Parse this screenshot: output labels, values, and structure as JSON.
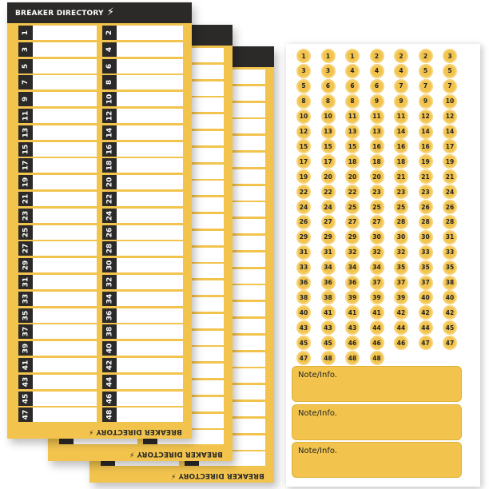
{
  "directory": {
    "title": "BREAKER DIRECTORY",
    "bolt_icon": "lightning-bolt-icon",
    "left_numbers": [
      "1",
      "3",
      "5",
      "7",
      "9",
      "11",
      "13",
      "15",
      "17",
      "19",
      "21",
      "23",
      "25",
      "27",
      "29",
      "31",
      "33",
      "35",
      "37",
      "39",
      "41",
      "43",
      "45",
      "47"
    ],
    "right_numbers": [
      "2",
      "4",
      "6",
      "8",
      "10",
      "12",
      "14",
      "16",
      "18",
      "20",
      "22",
      "24",
      "26",
      "28",
      "30",
      "32",
      "34",
      "36",
      "38",
      "40",
      "42",
      "44",
      "46",
      "48"
    ],
    "card_count": 3
  },
  "sticker_sheet": {
    "stickers": [
      "1",
      "1",
      "1",
      "2",
      "2",
      "2",
      "3",
      "3",
      "3",
      "4",
      "4",
      "4",
      "5",
      "5",
      "5",
      "6",
      "6",
      "6",
      "7",
      "7",
      "7",
      "8",
      "8",
      "8",
      "9",
      "9",
      "9",
      "10",
      "10",
      "10",
      "11",
      "11",
      "11",
      "12",
      "12",
      "12",
      "13",
      "13",
      "13",
      "14",
      "14",
      "14",
      "15",
      "15",
      "15",
      "16",
      "16",
      "16",
      "17",
      "17",
      "17",
      "18",
      "18",
      "18",
      "19",
      "19",
      "19",
      "20",
      "20",
      "20",
      "21",
      "21",
      "21",
      "22",
      "22",
      "22",
      "23",
      "23",
      "23",
      "24",
      "24",
      "24",
      "25",
      "25",
      "25",
      "26",
      "26",
      "26",
      "27",
      "27",
      "27",
      "28",
      "28",
      "28",
      "29",
      "29",
      "29",
      "30",
      "30",
      "30",
      "31",
      "31",
      "31",
      "32",
      "32",
      "32",
      "33",
      "33",
      "33",
      "34",
      "34",
      "34",
      "35",
      "35",
      "35",
      "36",
      "36",
      "36",
      "37",
      "37",
      "37",
      "38",
      "38",
      "38",
      "39",
      "39",
      "39",
      "40",
      "40",
      "40",
      "41",
      "41",
      "41",
      "42",
      "42",
      "42",
      "43",
      "43",
      "43",
      "44",
      "44",
      "44",
      "45",
      "45",
      "45",
      "46",
      "46",
      "46",
      "47",
      "47",
      "47",
      "48",
      "48",
      "48"
    ],
    "notes": [
      "Note/Info.",
      "Note/Info.",
      "Note/Info."
    ]
  },
  "colors": {
    "yellow": "#f2c44e",
    "dark": "#2b2a28"
  }
}
